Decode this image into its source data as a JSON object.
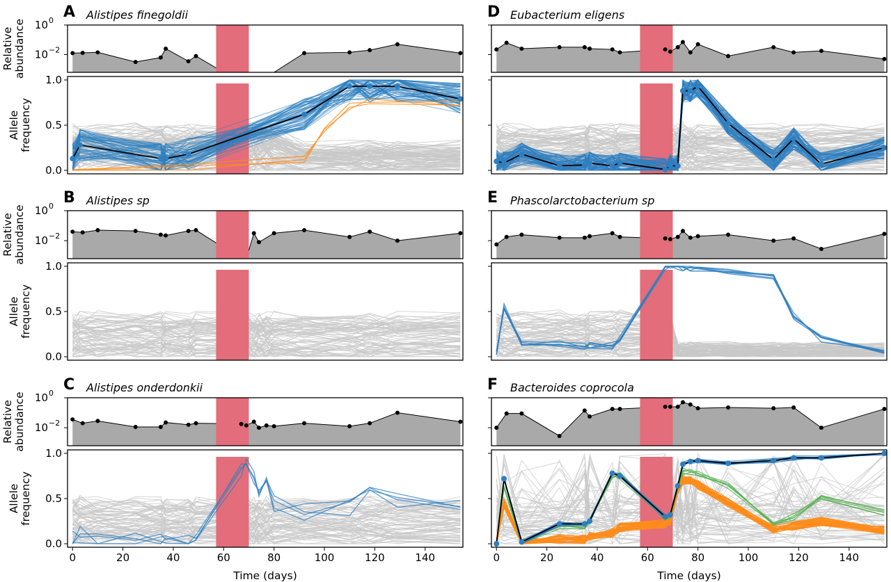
{
  "figure": {
    "xlabel": "Time (days)",
    "xticks": [
      0,
      20,
      40,
      60,
      80,
      100,
      120,
      140
    ]
  },
  "labels": {
    "abundance_line1": "Relative",
    "abundance_line2": "abundance",
    "freq_line1": "Allele",
    "freq_line2": "frequency",
    "abund_tick_top": "10",
    "abund_tick_top_exp": "0",
    "abund_tick_bot": "10",
    "abund_tick_bot_exp": "−2",
    "freq_ticks": [
      "0.0",
      "0.5",
      "1.0"
    ]
  },
  "colors": {
    "abundance_fill": "#a9a9a9",
    "treatment": "#e36d7a",
    "background_snv": "#c8c8c8",
    "blue": "#2e7fc0",
    "orange": "#ff8c1a",
    "green": "#55b050"
  },
  "chart_data": [
    {
      "panel": "A",
      "title": "Alistipes finegoldii",
      "type": "line",
      "xlim": [
        -2,
        155
      ],
      "treatment_window": [
        57,
        70
      ],
      "abundance": {
        "ylim_log10": [
          -3.2,
          0
        ],
        "x": [
          0,
          4,
          10,
          25,
          35,
          37,
          46,
          49,
          60,
          70,
          80,
          92,
          110,
          118,
          129,
          154
        ],
        "log10": [
          -1.9,
          -1.88,
          -1.85,
          -2.5,
          -2.2,
          -1.6,
          -2.45,
          -2.1,
          -3.2,
          -3.2,
          -3.2,
          -1.9,
          -1.85,
          -1.7,
          -1.3,
          -1.9
        ]
      },
      "freq": {
        "ylim": [
          0,
          1
        ],
        "highlight_x": [
          0,
          3,
          35,
          37,
          46,
          92,
          110,
          118,
          129,
          154
        ],
        "highlight_y": [
          0.13,
          0.28,
          0.13,
          0.13,
          0.18,
          0.62,
          0.93,
          0.93,
          0.93,
          0.79
        ],
        "blue_count": 70,
        "orange_count": 3,
        "background_count": 90
      }
    },
    {
      "panel": "B",
      "title": "Alistipes sp",
      "type": "line",
      "xlim": [
        -2,
        155
      ],
      "treatment_window": [
        57,
        70
      ],
      "abundance": {
        "ylim_log10": [
          -3.2,
          0
        ],
        "x": [
          0,
          4,
          10,
          25,
          35,
          37,
          46,
          49,
          67,
          69,
          72,
          74,
          80,
          92,
          110,
          118,
          129,
          154
        ],
        "log10": [
          -1.4,
          -1.45,
          -1.3,
          -1.35,
          -1.6,
          -1.65,
          -1.35,
          -1.3,
          -3.2,
          -3.2,
          -1.5,
          -2.1,
          -1.5,
          -1.3,
          -1.75,
          -1.4,
          -2.0,
          -1.5
        ]
      },
      "freq": {
        "ylim": [
          0,
          1
        ],
        "highlight_x": [],
        "highlight_y": [],
        "blue_count": 0,
        "orange_count": 0,
        "background_count": 80
      }
    },
    {
      "panel": "C",
      "title": "Alistipes onderdonkii",
      "type": "line",
      "xlim": [
        -2,
        155
      ],
      "treatment_window": [
        57,
        70
      ],
      "abundance": {
        "ylim_log10": [
          -3.2,
          0
        ],
        "x": [
          0,
          4,
          10,
          25,
          35,
          37,
          46,
          49,
          67,
          69,
          72,
          74,
          77,
          80,
          92,
          110,
          118,
          129,
          154
        ],
        "log10": [
          -1.45,
          -1.7,
          -1.55,
          -1.95,
          -1.95,
          -1.65,
          -1.8,
          -1.7,
          -1.75,
          -1.85,
          -1.6,
          -2.0,
          -1.85,
          -1.9,
          -1.7,
          -1.9,
          -1.7,
          -1.0,
          -1.6
        ]
      },
      "freq": {
        "ylim": [
          0,
          1
        ],
        "highlight_x": [],
        "highlight_y": [],
        "blue_count": 4,
        "orange_count": 0,
        "background_count": 80
      }
    },
    {
      "panel": "D",
      "title": "Eubacterium eligens",
      "type": "line",
      "xlim": [
        -2,
        155
      ],
      "treatment_window": [
        57,
        70
      ],
      "abundance": {
        "ylim_log10": [
          -3.2,
          0
        ],
        "x": [
          0,
          4,
          10,
          25,
          35,
          37,
          46,
          49,
          67,
          69,
          72,
          74,
          77,
          80,
          92,
          110,
          118,
          129,
          154
        ],
        "log10": [
          -1.65,
          -1.2,
          -1.6,
          -1.5,
          -1.5,
          -1.6,
          -1.65,
          -1.85,
          -1.65,
          -1.8,
          -1.5,
          -1.15,
          -1.85,
          -1.3,
          -2.1,
          -1.5,
          -1.85,
          -1.75,
          -2.3
        ]
      },
      "freq": {
        "ylim": [
          0,
          1
        ],
        "highlight_x": [
          0,
          3,
          10,
          25,
          35,
          37,
          46,
          49,
          67,
          69,
          72,
          74,
          77,
          80,
          92,
          110,
          118,
          129,
          154
        ],
        "highlight_y": [
          0.1,
          0.08,
          0.18,
          0.05,
          0.06,
          0.08,
          0.05,
          0.08,
          0.01,
          0.05,
          0.05,
          0.88,
          0.88,
          0.93,
          0.52,
          0.12,
          0.35,
          0.07,
          0.25
        ],
        "blue_count": 80,
        "orange_count": 0,
        "background_count": 90
      }
    },
    {
      "panel": "E",
      "title": "Phascolarctobacterium sp",
      "type": "line",
      "xlim": [
        -2,
        155
      ],
      "treatment_window": [
        57,
        70
      ],
      "abundance": {
        "ylim_log10": [
          -3.2,
          0
        ],
        "x": [
          0,
          4,
          10,
          25,
          35,
          37,
          46,
          49,
          67,
          69,
          72,
          74,
          77,
          80,
          92,
          110,
          118,
          129,
          154
        ],
        "log10": [
          -2.25,
          -1.75,
          -1.6,
          -1.8,
          -1.8,
          -1.7,
          -1.5,
          -1.75,
          -1.85,
          -1.9,
          -1.75,
          -1.35,
          -1.8,
          -1.7,
          -1.6,
          -2.0,
          -1.85,
          -2.55,
          -1.55
        ]
      },
      "freq": {
        "ylim": [
          0,
          1
        ],
        "highlight_x": [],
        "highlight_y": [],
        "blue_count": 6,
        "orange_count": 0,
        "background_count": 80
      }
    },
    {
      "panel": "F",
      "title": "Bacteroides coprocola",
      "type": "line",
      "xlim": [
        -2,
        155
      ],
      "treatment_window": [
        57,
        70
      ],
      "abundance": {
        "ylim_log10": [
          -3.2,
          0
        ],
        "x": [
          0,
          4,
          10,
          25,
          35,
          37,
          46,
          49,
          67,
          69,
          72,
          74,
          77,
          80,
          92,
          110,
          118,
          129,
          154
        ],
        "log10": [
          -2.0,
          -1.05,
          -1.05,
          -2.55,
          -0.85,
          -1.25,
          -0.75,
          -0.75,
          -0.6,
          -0.6,
          -0.6,
          -0.3,
          -0.45,
          -0.7,
          -0.65,
          -0.7,
          -0.65,
          -2.0,
          -0.75
        ]
      },
      "freq": {
        "ylim": [
          0,
          1
        ],
        "highlight_x": [
          0,
          3,
          10,
          25,
          35,
          37,
          46,
          49,
          67,
          69,
          72,
          74,
          77,
          80,
          92,
          110,
          118,
          129,
          154
        ],
        "highlight_y": [
          0.0,
          0.72,
          0.02,
          0.22,
          0.22,
          0.25,
          0.78,
          0.75,
          0.3,
          0.32,
          0.64,
          0.88,
          0.91,
          0.92,
          0.89,
          0.92,
          0.95,
          0.95,
          1.0
        ],
        "blue_count": 12,
        "orange_count": 25,
        "green_count": 5,
        "background_count": 60
      }
    }
  ]
}
